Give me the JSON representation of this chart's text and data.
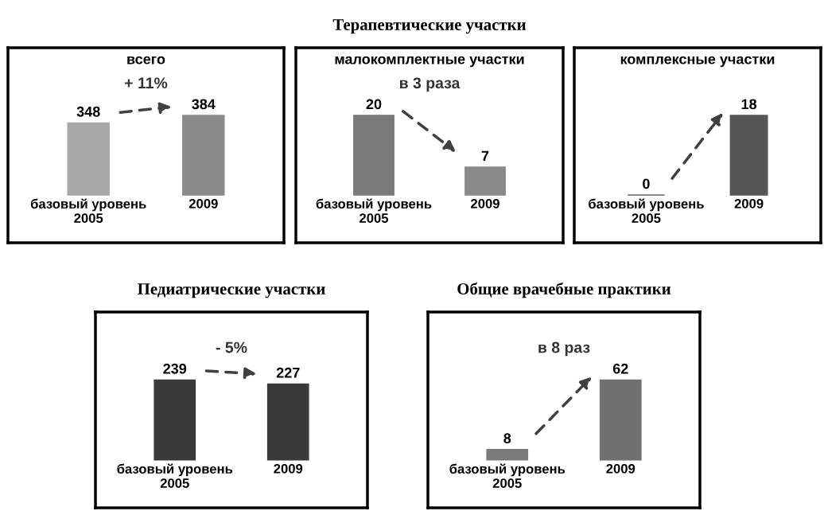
{
  "chart_data": [
    {
      "type": "bar",
      "subtitle": "всего",
      "categories": [
        "базовый уровень\n2005",
        "2009"
      ],
      "values": [
        348,
        384
      ],
      "colors": [
        "#a8a8a8",
        "#8a8a8a"
      ],
      "data_labels": true,
      "annotations": [
        "+ 11%"
      ]
    },
    {
      "type": "bar",
      "title": "Терапевтические участки",
      "subtitle": "малокомплектные участки",
      "categories": [
        "базовый уровень\n2005",
        "2009"
      ],
      "values": [
        20,
        7
      ],
      "colors": [
        "#7a7a7a",
        "#8a8a8a"
      ],
      "data_labels": true,
      "annotations": [
        "в 3 раза"
      ]
    },
    {
      "type": "bar",
      "subtitle": "комплексные участки",
      "categories": [
        "базовый уровень\n2005",
        "2009"
      ],
      "values": [
        0,
        18
      ],
      "colors": [
        "#666666",
        "#555555"
      ],
      "data_labels": true
    },
    {
      "type": "bar",
      "title": "Педиатрические участки",
      "categories": [
        "базовый уровень\n2005",
        "2009"
      ],
      "values": [
        239,
        227
      ],
      "colors": [
        "#3a3a3a",
        "#3a3a3a"
      ],
      "data_labels": true,
      "annotations": [
        "- 5%"
      ]
    },
    {
      "type": "bar",
      "title": "Общие врачебные практики",
      "categories": [
        "базовый уровень\n2005",
        "2009"
      ],
      "values": [
        8,
        62
      ],
      "colors": [
        "#7a7a7a",
        "#707070"
      ],
      "data_labels": true,
      "annotations": [
        "в 8 раз"
      ]
    }
  ]
}
